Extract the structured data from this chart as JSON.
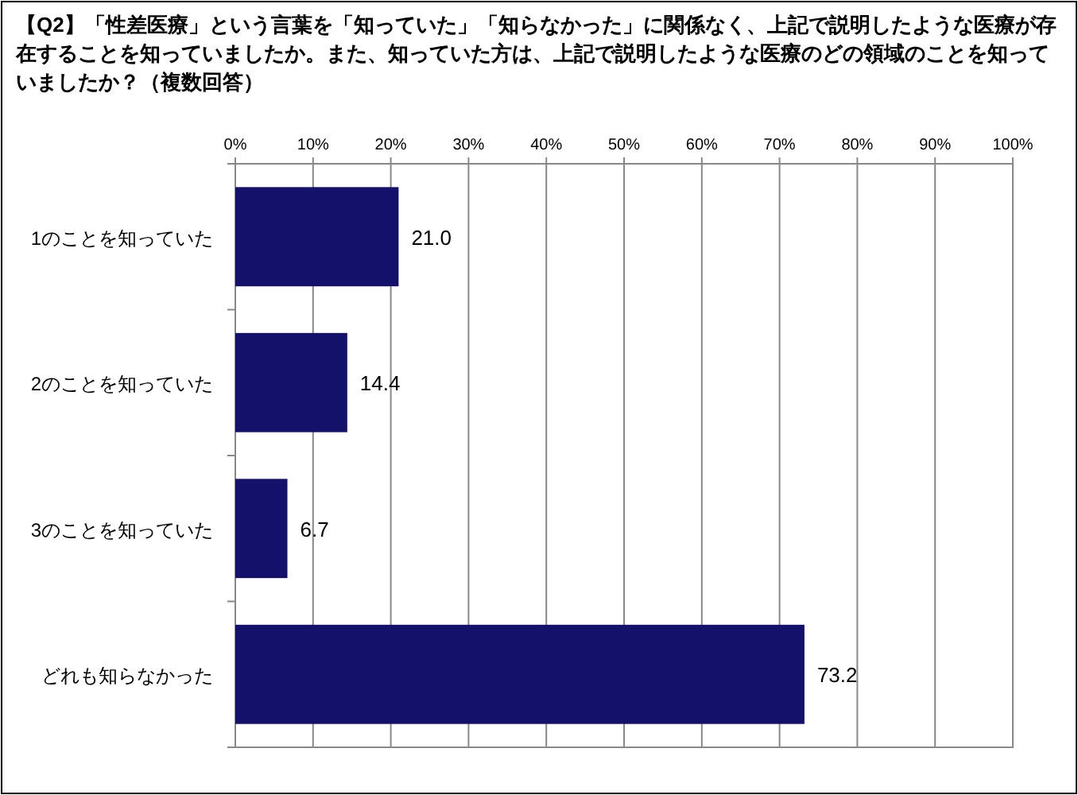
{
  "chart_data": {
    "type": "bar",
    "orientation": "horizontal",
    "title": "【Q2】「性差医療」という言葉を「知っていた」「知らなかった」に関係なく、上記で説明したような医療が存在することを知っていましたか。また、知っていた方は、上記で説明したような医療のどの領域のことを知っていましたか？（複数回答）",
    "categories": [
      "1のことを知っていた",
      "2のことを知っていた",
      "3のことを知っていた",
      "どれも知らなかった"
    ],
    "values": [
      21.0,
      14.4,
      6.7,
      73.2
    ],
    "value_labels": [
      "21.0",
      "14.4",
      "6.7",
      "73.2"
    ],
    "color": "#14116b",
    "xlim": [
      0,
      100
    ],
    "xticks": [
      {
        "value": 0,
        "label": "0%"
      },
      {
        "value": 10,
        "label": "10%"
      },
      {
        "value": 20,
        "label": "20%"
      },
      {
        "value": 30,
        "label": "30%"
      },
      {
        "value": 40,
        "label": "40%"
      },
      {
        "value": 50,
        "label": "50%"
      },
      {
        "value": 60,
        "label": "60%"
      },
      {
        "value": 70,
        "label": "70%"
      },
      {
        "value": 80,
        "label": "80%"
      },
      {
        "value": 90,
        "label": "90%"
      },
      {
        "value": 100,
        "label": "100%"
      }
    ],
    "grid": "x"
  }
}
